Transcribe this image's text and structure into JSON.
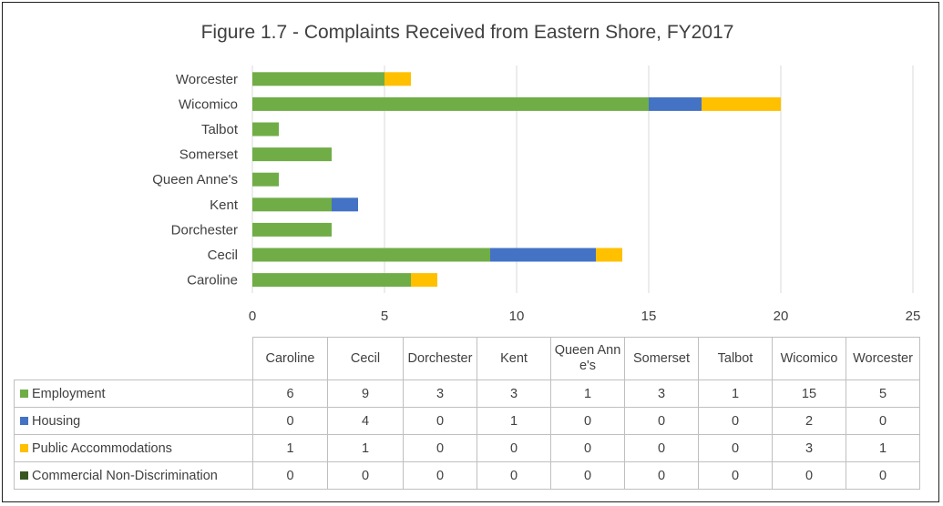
{
  "colors": {
    "Employment": "#70ad47",
    "Housing": "#4472c4",
    "Public Accommodations": "#ffc000",
    "Commercial Non-Discrimination": "#375623"
  },
  "chart_data": {
    "type": "bar",
    "orientation": "horizontal",
    "stacked": true,
    "title": "Figure 1.7 - Complaints Received from Eastern Shore, FY2017",
    "categories": [
      "Caroline",
      "Cecil",
      "Dorchester",
      "Kent",
      "Queen Anne's",
      "Somerset",
      "Talbot",
      "Wicomico",
      "Worcester"
    ],
    "table_headers": [
      "Caroline",
      "Cecil",
      "Dorchester",
      "Kent",
      "Queen Anne's",
      "Somerset",
      "Talbot",
      "Wicomico",
      "Worcester"
    ],
    "series": [
      {
        "name": "Employment",
        "values": [
          6,
          9,
          3,
          3,
          1,
          3,
          1,
          15,
          5
        ]
      },
      {
        "name": "Housing",
        "values": [
          0,
          4,
          0,
          1,
          0,
          0,
          0,
          2,
          0
        ]
      },
      {
        "name": "Public Accommodations",
        "values": [
          1,
          1,
          0,
          0,
          0,
          0,
          0,
          3,
          1
        ]
      },
      {
        "name": "Commercial Non-Discrimination",
        "values": [
          0,
          0,
          0,
          0,
          0,
          0,
          0,
          0,
          0
        ]
      }
    ],
    "xlim": [
      0,
      25
    ],
    "xticks": [
      0,
      5,
      10,
      15,
      20,
      25
    ],
    "grid": true,
    "legend": "data-table"
  }
}
